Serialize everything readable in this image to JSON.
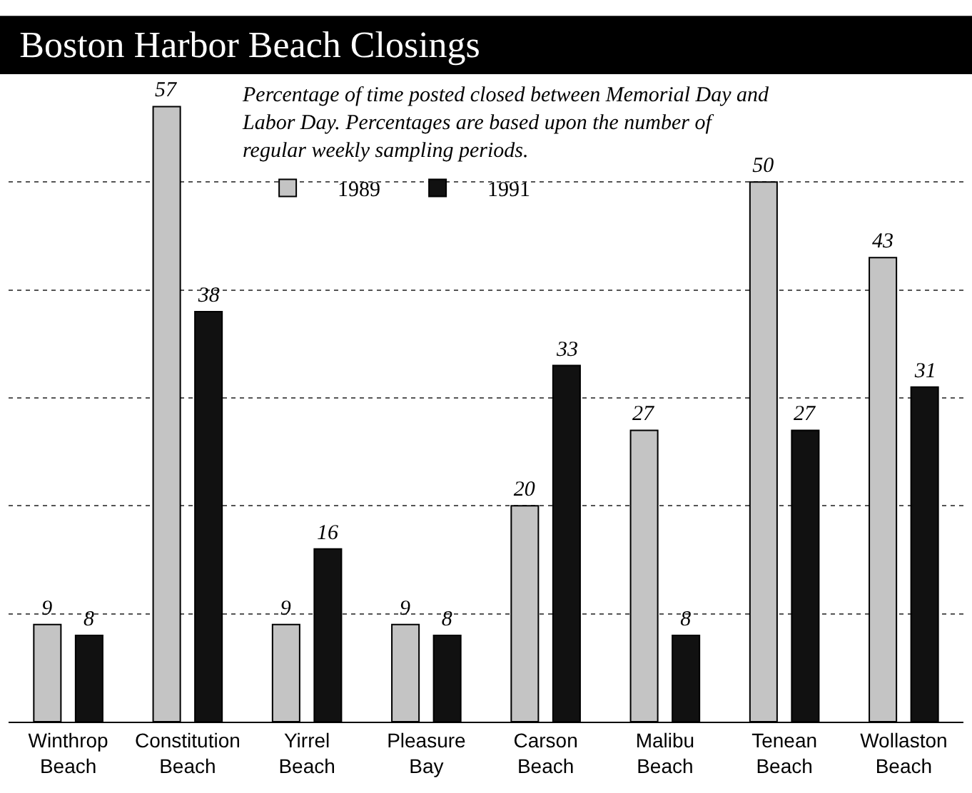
{
  "chart_data": {
    "type": "bar",
    "title": "Boston Harbor Beach Closings",
    "subtitle": "Percentage of time posted closed between Memorial Day and\nLabor Day. Percentages are based upon the number of\nregular weekly sampling periods.",
    "categories": [
      "Winthrop\nBeach",
      "Constitution\nBeach",
      "Yirrel\nBeach",
      "Pleasure\nBay",
      "Carson\nBeach",
      "Malibu\nBeach",
      "Tenean\nBeach",
      "Wollaston\nBeach"
    ],
    "series": [
      {
        "name": "1989",
        "color": "#c4c4c4",
        "values": [
          9,
          57,
          9,
          9,
          20,
          27,
          50,
          43
        ]
      },
      {
        "name": "1991",
        "color": "#111111",
        "values": [
          8,
          38,
          16,
          8,
          33,
          8,
          27,
          31
        ]
      }
    ],
    "yticks": [
      {
        "value": 10,
        "label": null
      },
      {
        "value": 20,
        "label": null
      },
      {
        "value": 30,
        "label": null
      },
      {
        "value": 40,
        "label": null
      },
      {
        "value": 50,
        "label": null
      }
    ],
    "tick_labels": "x",
    "grid": "y",
    "legend": "top",
    "data_labels": true
  }
}
